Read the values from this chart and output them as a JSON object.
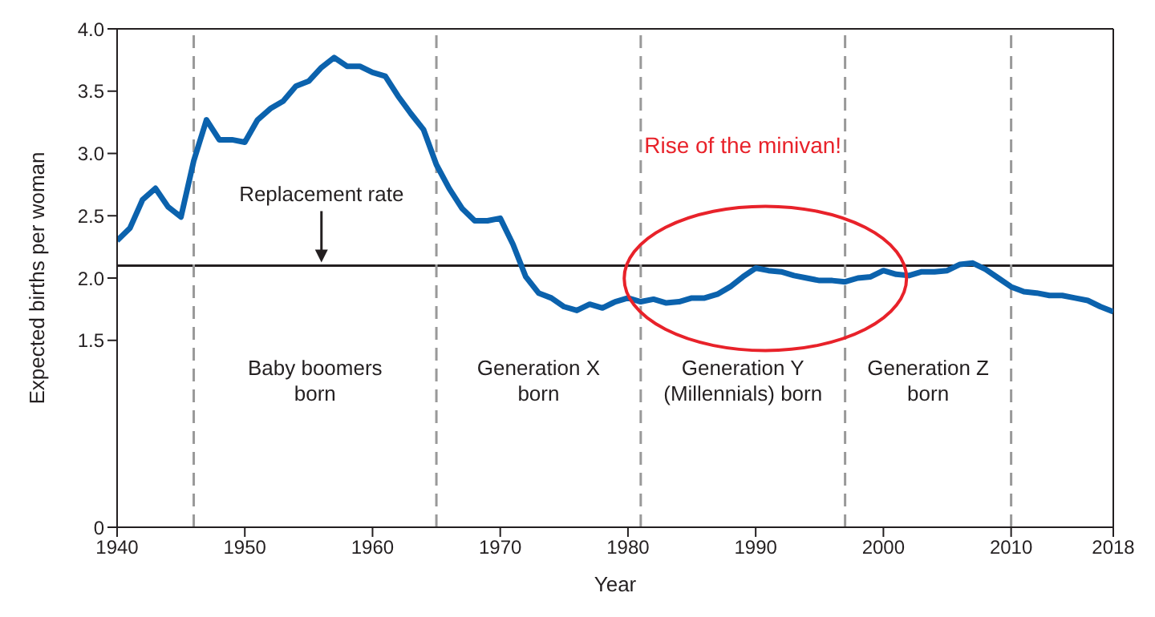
{
  "chart_data": {
    "type": "line",
    "xlabel": "Year",
    "ylabel": "Expected births per woman",
    "x": [
      1940,
      1941,
      1942,
      1943,
      1944,
      1945,
      1946,
      1947,
      1948,
      1949,
      1950,
      1951,
      1952,
      1953,
      1954,
      1955,
      1956,
      1957,
      1958,
      1959,
      1960,
      1961,
      1962,
      1963,
      1964,
      1965,
      1966,
      1967,
      1968,
      1969,
      1970,
      1971,
      1972,
      1973,
      1974,
      1975,
      1976,
      1977,
      1978,
      1979,
      1980,
      1981,
      1982,
      1983,
      1984,
      1985,
      1986,
      1987,
      1988,
      1989,
      1990,
      1991,
      1992,
      1993,
      1994,
      1995,
      1996,
      1997,
      1998,
      1999,
      2000,
      2001,
      2002,
      2003,
      2004,
      2005,
      2006,
      2007,
      2008,
      2009,
      2010,
      2011,
      2012,
      2013,
      2014,
      2015,
      2016,
      2017,
      2018
    ],
    "series": [
      {
        "color": "#0b62ad",
        "values": [
          2.3,
          2.4,
          2.63,
          2.72,
          2.57,
          2.49,
          2.94,
          3.27,
          3.11,
          3.11,
          3.09,
          3.27,
          3.36,
          3.42,
          3.54,
          3.58,
          3.69,
          3.77,
          3.7,
          3.7,
          3.65,
          3.62,
          3.46,
          3.32,
          3.19,
          2.91,
          2.72,
          2.56,
          2.46,
          2.46,
          2.48,
          2.27,
          2.01,
          1.88,
          1.84,
          1.77,
          1.74,
          1.79,
          1.76,
          1.81,
          1.84,
          1.81,
          1.83,
          1.8,
          1.81,
          1.84,
          1.84,
          1.87,
          1.93,
          2.01,
          2.08,
          2.06,
          2.05,
          2.02,
          2.0,
          1.98,
          1.98,
          1.97,
          2.0,
          2.01,
          2.06,
          2.03,
          2.02,
          2.05,
          2.05,
          2.06,
          2.11,
          2.12,
          2.07,
          2.0,
          1.93,
          1.89,
          1.88,
          1.86,
          1.86,
          1.84,
          1.82,
          1.77,
          1.73
        ]
      }
    ],
    "xlim": [
      1940,
      2018
    ],
    "xticks": [
      1940,
      1950,
      1960,
      1970,
      1980,
      1990,
      2000,
      2010,
      2018
    ],
    "ylim": [
      0,
      4
    ],
    "yticks": [
      0,
      {
        "value": 1.5,
        "label": "1.5"
      },
      {
        "value": 2,
        "label": "2.0"
      },
      {
        "value": 2.5,
        "label": "2.5"
      },
      {
        "value": 3,
        "label": "3.0"
      },
      {
        "value": 3.5,
        "label": "3.5"
      },
      {
        "value": 4,
        "label": "4.0"
      }
    ],
    "ref_lines": [
      {
        "axis": "y",
        "value": 2.1,
        "color": "#231f20"
      },
      {
        "axis": "x",
        "value": 1946,
        "color": "#999999",
        "line_style": "dashed"
      },
      {
        "axis": "x",
        "value": 1965,
        "color": "#999999",
        "line_style": "dashed"
      },
      {
        "axis": "x",
        "value": 1981,
        "color": "#999999",
        "line_style": "dashed"
      },
      {
        "axis": "x",
        "value": 1997,
        "color": "#999999",
        "line_style": "dashed"
      },
      {
        "axis": "x",
        "value": 2010,
        "color": "#999999",
        "line_style": "dashed"
      }
    ],
    "annotations": [
      {
        "text": "Replacement rate",
        "x": 1956,
        "y": 2.1
      },
      "Baby boomers\nborn",
      "Generation X\nborn",
      "Generation Y\n(Millennials) born",
      "Generation Z\nborn",
      "Rise of the minivan!"
    ],
    "marker": "none",
    "line_style": "solid"
  }
}
